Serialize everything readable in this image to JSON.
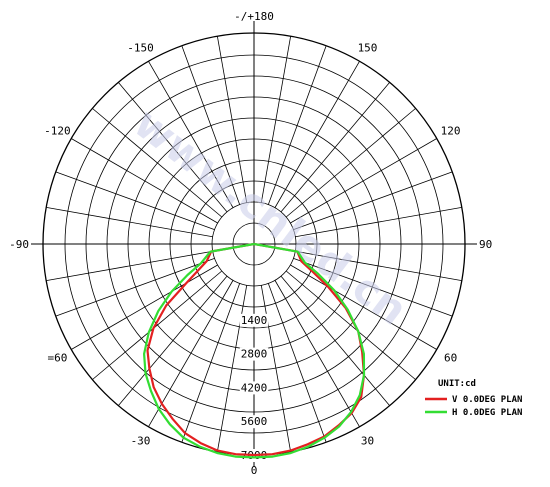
{
  "chart_data": {
    "type": "polar-line",
    "watermark": "www.cnled.cn",
    "unit_label": "UNIT:cd",
    "angle_labels": [
      {
        "angle": 0,
        "text": "0"
      },
      {
        "angle": 30,
        "text": "30"
      },
      {
        "angle": -30,
        "text": "-30"
      },
      {
        "angle": 60,
        "text": "60"
      },
      {
        "angle": -60,
        "text": "=60"
      },
      {
        "angle": 90,
        "text": "90"
      },
      {
        "angle": -90,
        "text": "-90"
      },
      {
        "angle": 120,
        "text": "120"
      },
      {
        "angle": -120,
        "text": "-120"
      },
      {
        "angle": 150,
        "text": "150"
      },
      {
        "angle": -150,
        "text": "-150"
      },
      {
        "angle": 180,
        "text": "-/+180"
      }
    ],
    "radial_ticks": [
      "1400",
      "2800",
      "4200",
      "5600",
      "7000"
    ],
    "rmax": 7000,
    "series": [
      {
        "name": "V 0.0DEG PLAN",
        "color": "#e32020",
        "points": [
          [
            -90,
            0
          ],
          [
            -80,
            60
          ],
          [
            -70,
            350
          ],
          [
            -60,
            1500
          ],
          [
            -55,
            2700
          ],
          [
            -50,
            3700
          ],
          [
            -45,
            4500
          ],
          [
            -40,
            5000
          ],
          [
            -35,
            5500
          ],
          [
            -30,
            5900
          ],
          [
            -25,
            6250
          ],
          [
            -20,
            6600
          ],
          [
            -15,
            6800
          ],
          [
            -10,
            6950
          ],
          [
            -5,
            7000
          ],
          [
            0,
            7000
          ],
          [
            5,
            7000
          ],
          [
            10,
            6950
          ],
          [
            15,
            6850
          ],
          [
            20,
            6750
          ],
          [
            25,
            6550
          ],
          [
            30,
            6350
          ],
          [
            35,
            6000
          ],
          [
            40,
            5350
          ],
          [
            45,
            4600
          ],
          [
            50,
            3900
          ],
          [
            55,
            2900
          ],
          [
            60,
            1800
          ],
          [
            65,
            900
          ],
          [
            70,
            350
          ],
          [
            80,
            80
          ],
          [
            90,
            0
          ]
        ]
      },
      {
        "name": "H 0.0DEG PLAN",
        "color": "#33dd33",
        "points": [
          [
            -90,
            0
          ],
          [
            -80,
            100
          ],
          [
            -70,
            600
          ],
          [
            -65,
            1300
          ],
          [
            -60,
            2200
          ],
          [
            -55,
            3100
          ],
          [
            -50,
            3950
          ],
          [
            -45,
            4700
          ],
          [
            -40,
            5250
          ],
          [
            -35,
            5700
          ],
          [
            -30,
            6150
          ],
          [
            -25,
            6500
          ],
          [
            -20,
            6800
          ],
          [
            -15,
            6950
          ],
          [
            -10,
            7050
          ],
          [
            -5,
            7100
          ],
          [
            0,
            7100
          ],
          [
            5,
            7100
          ],
          [
            10,
            7050
          ],
          [
            15,
            6950
          ],
          [
            20,
            6800
          ],
          [
            25,
            6600
          ],
          [
            30,
            6300
          ],
          [
            35,
            5900
          ],
          [
            40,
            5350
          ],
          [
            45,
            4700
          ],
          [
            50,
            3900
          ],
          [
            55,
            3000
          ],
          [
            60,
            2100
          ],
          [
            65,
            1200
          ],
          [
            70,
            500
          ],
          [
            80,
            100
          ],
          [
            90,
            0
          ]
        ]
      }
    ]
  }
}
